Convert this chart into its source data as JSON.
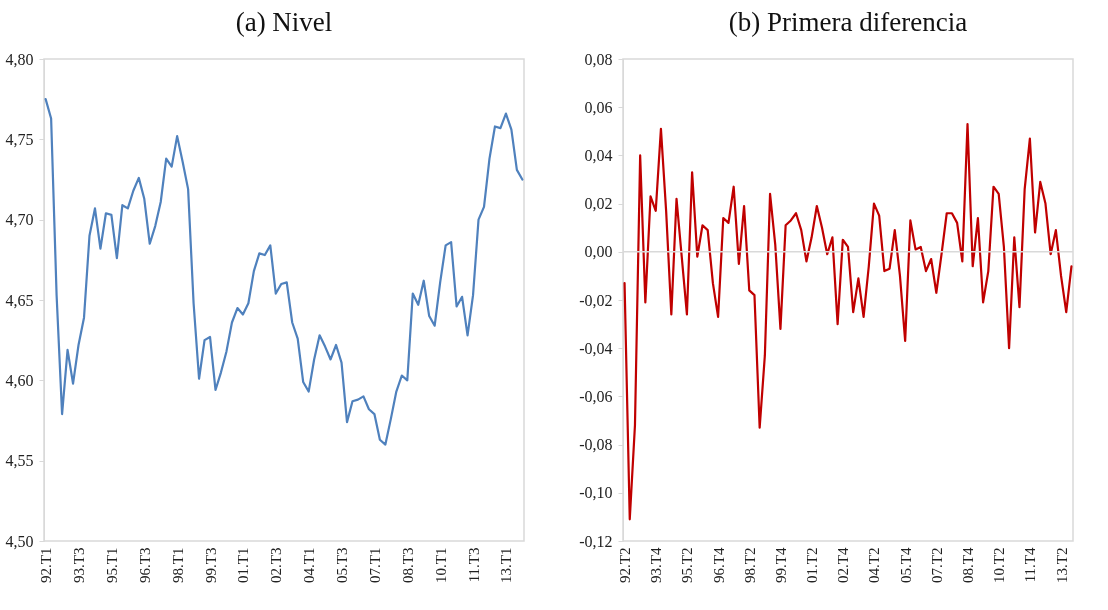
{
  "chart_data": [
    {
      "type": "line",
      "title": "(a) Nivel",
      "categories": [
        "92.T1",
        null,
        null,
        null,
        null,
        null,
        "93.T3",
        null,
        null,
        null,
        null,
        null,
        "95.T1",
        null,
        null,
        null,
        null,
        null,
        "96.T3",
        null,
        null,
        null,
        null,
        null,
        "98.T1",
        null,
        null,
        null,
        null,
        null,
        "99.T3",
        null,
        null,
        null,
        null,
        null,
        "01.T1",
        null,
        null,
        null,
        null,
        null,
        "02.T3",
        null,
        null,
        null,
        null,
        null,
        "04.T1",
        null,
        null,
        null,
        null,
        null,
        "05.T3",
        null,
        null,
        null,
        null,
        null,
        "07.T1",
        null,
        null,
        null,
        null,
        null,
        "08.T3",
        null,
        null,
        null,
        null,
        null,
        "10.T1",
        null,
        null,
        null,
        null,
        null,
        "11.T3",
        null,
        null,
        null,
        null,
        null,
        "13.T1",
        null,
        null,
        null
      ],
      "series": [
        {
          "color": "#4f81bd",
          "values": [
            4.775,
            4.763,
            4.653,
            4.579,
            4.619,
            4.598,
            4.622,
            4.639,
            4.69,
            4.707,
            4.682,
            4.704,
            4.703,
            4.676,
            4.709,
            4.707,
            4.718,
            4.726,
            4.713,
            4.685,
            4.696,
            4.711,
            4.738,
            4.733,
            4.752,
            4.736,
            4.719,
            4.648,
            4.601,
            4.625,
            4.627,
            4.594,
            4.605,
            4.618,
            4.636,
            4.645,
            4.641,
            4.648,
            4.668,
            4.679,
            4.678,
            4.684,
            4.654,
            4.66,
            4.661,
            4.636,
            4.626,
            4.599,
            4.593,
            4.613,
            4.628,
            4.621,
            4.613,
            4.622,
            4.611,
            4.574,
            4.587,
            4.588,
            4.59,
            4.582,
            4.579,
            4.563,
            4.56,
            4.576,
            4.593,
            4.603,
            4.6,
            4.654,
            4.647,
            4.662,
            4.64,
            4.634,
            4.661,
            4.684,
            4.686,
            4.646,
            4.652,
            4.628,
            4.653,
            4.7,
            4.708,
            4.738,
            4.758,
            4.757,
            4.766,
            4.756,
            4.731,
            4.725
          ]
        }
      ],
      "ylim": [
        4.5,
        4.8
      ],
      "yticks": [
        {
          "value": 4.5,
          "label": "4,50"
        },
        {
          "value": 4.55,
          "label": "4,55"
        },
        {
          "value": 4.6,
          "label": "4,60"
        },
        {
          "value": 4.65,
          "label": "4,65"
        },
        {
          "value": 4.7,
          "label": "4,70"
        },
        {
          "value": 4.75,
          "label": "4,75"
        },
        {
          "value": 4.8,
          "label": "4,80"
        }
      ]
    },
    {
      "type": "line",
      "title": "(b) Primera diferencia",
      "categories": [
        "92.T2",
        null,
        null,
        null,
        null,
        null,
        "93.T4",
        null,
        null,
        null,
        null,
        null,
        "95.T2",
        null,
        null,
        null,
        null,
        null,
        "96.T4",
        null,
        null,
        null,
        null,
        null,
        "98.T2",
        null,
        null,
        null,
        null,
        null,
        "99.T4",
        null,
        null,
        null,
        null,
        null,
        "01.T2",
        null,
        null,
        null,
        null,
        null,
        "02.T4",
        null,
        null,
        null,
        null,
        null,
        "04.T2",
        null,
        null,
        null,
        null,
        null,
        "05.T4",
        null,
        null,
        null,
        null,
        null,
        "07.T2",
        null,
        null,
        null,
        null,
        null,
        "08.T4",
        null,
        null,
        null,
        null,
        null,
        "10.T2",
        null,
        null,
        null,
        null,
        null,
        "11.T4",
        null,
        null,
        null,
        null,
        null,
        "13.T2",
        null,
        null
      ],
      "series": [
        {
          "color": "#c00000",
          "values": [
            -0.013,
            -0.111,
            -0.072,
            0.04,
            -0.021,
            0.023,
            0.017,
            0.051,
            0.017,
            -0.026,
            0.022,
            -0.002,
            -0.026,
            0.033,
            -0.002,
            0.011,
            0.009,
            -0.013,
            -0.027,
            0.014,
            0.012,
            0.027,
            -0.005,
            0.019,
            -0.016,
            -0.018,
            -0.073,
            -0.043,
            0.024,
            0.003,
            -0.032,
            0.011,
            0.013,
            0.016,
            0.009,
            -0.004,
            0.006,
            0.019,
            0.01,
            -0.001,
            0.006,
            -0.03,
            0.005,
            0.002,
            -0.025,
            -0.011,
            -0.027,
            -0.006,
            0.02,
            0.015,
            -0.008,
            -0.007,
            0.009,
            -0.01,
            -0.037,
            0.013,
            0.001,
            0.002,
            -0.008,
            -0.003,
            -0.017,
            -0.001,
            0.016,
            0.016,
            0.012,
            -0.004,
            0.053,
            -0.006,
            0.014,
            -0.021,
            -0.008,
            0.027,
            0.024,
            0.002,
            -0.04,
            0.006,
            -0.023,
            0.026,
            0.047,
            0.008,
            0.029,
            0.02,
            -0.001,
            0.009,
            -0.01,
            -0.025,
            -0.006
          ]
        }
      ],
      "ylim": [
        -0.12,
        0.08
      ],
      "yticks": [
        {
          "value": -0.12,
          "label": "-0,12"
        },
        {
          "value": -0.1,
          "label": "-0,10"
        },
        {
          "value": -0.08,
          "label": "-0,08"
        },
        {
          "value": -0.06,
          "label": "-0,06"
        },
        {
          "value": -0.04,
          "label": "-0,04"
        },
        {
          "value": -0.02,
          "label": "-0,02"
        },
        {
          "value": 0,
          "label": "0,00"
        },
        {
          "value": 0.02,
          "label": "0,02"
        },
        {
          "value": 0.04,
          "label": "0,04"
        },
        {
          "value": 0.06,
          "label": "0,06"
        },
        {
          "value": 0.08,
          "label": "0,08"
        }
      ],
      "ref_lines": [
        {
          "axis": "y",
          "value": 0
        }
      ]
    }
  ]
}
